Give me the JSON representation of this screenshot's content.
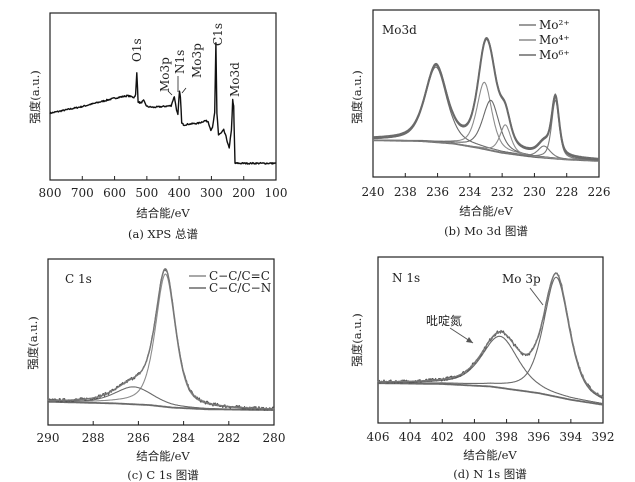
{
  "chart_data": [
    {
      "id": "a",
      "type": "line",
      "caption": "(a) XPS 总谱",
      "xlabel": "结合能/eV",
      "ylabel": "强度(a.u.)",
      "xlim": [
        800,
        100
      ],
      "ylim": [
        0,
        100
      ],
      "xticks": [
        800,
        700,
        600,
        500,
        400,
        300,
        200,
        100
      ],
      "grid": false,
      "annotations": [
        {
          "text": "O1s",
          "x": 531
        },
        {
          "text": "Mo3p",
          "x": 415
        },
        {
          "text": "N1s",
          "x": 398
        },
        {
          "text": "Mo3p",
          "x": 395
        },
        {
          "text": "C1s",
          "x": 285
        },
        {
          "text": "Mo3d",
          "x": 232
        }
      ],
      "series": [
        {
          "color": "#111111",
          "points": [
            [
              800,
              40
            ],
            [
              750,
              42
            ],
            [
              700,
              44
            ],
            [
              650,
              46.5
            ],
            [
              600,
              49
            ],
            [
              560,
              50.5
            ],
            [
              540,
              49.5
            ],
            [
              535,
              51
            ],
            [
              531,
              64
            ],
            [
              527,
              47
            ],
            [
              520,
              46
            ],
            [
              510,
              47.5
            ],
            [
              500,
              44
            ],
            [
              480,
              43.5
            ],
            [
              450,
              44
            ],
            [
              425,
              44.5
            ],
            [
              415,
              50
            ],
            [
              408,
              42
            ],
            [
              404,
              39
            ],
            [
              399,
              53
            ],
            [
              396,
              50
            ],
            [
              392,
              34
            ],
            [
              385,
              33
            ],
            [
              370,
              33.5
            ],
            [
              340,
              34
            ],
            [
              320,
              35.5
            ],
            [
              310,
              35
            ],
            [
              302,
              30
            ],
            [
              297,
              31
            ],
            [
              290,
              40
            ],
            [
              286,
              82
            ],
            [
              283,
              40
            ],
            [
              278,
              27
            ],
            [
              270,
              28
            ],
            [
              262,
              30
            ],
            [
              255,
              26
            ],
            [
              245,
              19
            ],
            [
              238,
              30
            ],
            [
              234,
              48
            ],
            [
              231,
              44
            ],
            [
              229,
              25
            ],
            [
              227,
              10
            ],
            [
              200,
              10
            ],
            [
              150,
              10
            ],
            [
              100,
              10
            ]
          ]
        }
      ]
    },
    {
      "id": "b",
      "type": "line",
      "caption": "(b) Mo 3d 图谱",
      "title": "Mo3d",
      "xlabel": "结合能/eV",
      "ylabel": "强度(a.u.)",
      "xlim": [
        240,
        226
      ],
      "ylim": [
        0,
        100
      ],
      "xticks": [
        240,
        238,
        236,
        234,
        232,
        230,
        228,
        226
      ],
      "grid": false,
      "legend": {
        "position": "top-right",
        "entries": [
          {
            "label": "Mo²⁺",
            "color": "#7a7a7a"
          },
          {
            "label": "Mo⁴⁺",
            "color": "#8c8c8c"
          },
          {
            "label": "Mo⁶⁺",
            "color": "#6a6a6a"
          }
        ]
      },
      "background": [
        [
          240,
          22
        ],
        [
          237,
          21.5
        ],
        [
          235,
          20
        ],
        [
          233.5,
          17.5
        ],
        [
          232,
          14.5
        ],
        [
          230,
          12
        ],
        [
          228,
          10.5
        ],
        [
          226,
          9.6
        ]
      ],
      "peaks": [
        {
          "center": 236.1,
          "height": 45,
          "fwhm": 1.6,
          "color": "#6a6a6a"
        },
        {
          "center": 233.1,
          "height": 40,
          "fwhm": 1.1,
          "color": "#8c8c8c"
        },
        {
          "center": 232.7,
          "height": 30,
          "fwhm": 1.2,
          "color": "#6a6a6a"
        },
        {
          "center": 231.8,
          "height": 17,
          "fwhm": 0.8,
          "color": "#8c8c8c"
        },
        {
          "center": 229.4,
          "height": 7,
          "fwhm": 0.9,
          "color": "#7a7a7a"
        },
        {
          "center": 228.7,
          "height": 35,
          "fwhm": 0.55,
          "color": "#7a7a7a"
        }
      ],
      "envelope_color": "#6a6a6a"
    },
    {
      "id": "c",
      "type": "line",
      "caption": "(c) C 1s 图谱",
      "title": "C 1s",
      "xlabel": "结合能/eV",
      "ylabel": "强度(a.u.)",
      "xlim": [
        290,
        280
      ],
      "ylim": [
        0,
        100
      ],
      "xticks": [
        290,
        288,
        286,
        284,
        282,
        280
      ],
      "grid": false,
      "legend": {
        "position": "top-right",
        "entries": [
          {
            "label": "C−C/C=C",
            "color": "#8c8c8c"
          },
          {
            "label": "C−C/C−N",
            "color": "#6a6a6a"
          }
        ]
      },
      "background": [
        [
          290,
          14
        ],
        [
          287,
          13
        ],
        [
          285.5,
          12
        ],
        [
          284.5,
          10.5
        ],
        [
          283,
          9.5
        ],
        [
          280,
          9
        ]
      ],
      "peaks": [
        {
          "center": 284.8,
          "height": 80,
          "fwhm": 1.05,
          "color": "#8c8c8c"
        },
        {
          "center": 286.2,
          "height": 10.5,
          "fwhm": 2.0,
          "color": "#6a6a6a"
        }
      ],
      "envelope_color": "#555555",
      "noisy_data": true
    },
    {
      "id": "d",
      "type": "line",
      "caption": "(d) N 1s 图谱",
      "title": "N 1s",
      "xlabel": "结合能/eV",
      "ylabel": "强度(a.u.)",
      "xlim": [
        406,
        392
      ],
      "ylim": [
        0,
        100
      ],
      "xticks": [
        406,
        404,
        402,
        400,
        398,
        396,
        394,
        392
      ],
      "grid": false,
      "annotations": [
        {
          "text": "吡啶氮",
          "x": 399.6
        },
        {
          "text": "Mo 3p",
          "x": 396.2
        }
      ],
      "background": [
        [
          406,
          24
        ],
        [
          402,
          23.5
        ],
        [
          399,
          22
        ],
        [
          396,
          18
        ],
        [
          394,
          14
        ],
        [
          392,
          11
        ]
      ],
      "peaks": [
        {
          "center": 398.4,
          "height": 31,
          "fwhm": 2.7,
          "color": "#6a6a6a"
        },
        {
          "center": 394.9,
          "height": 72,
          "fwhm": 1.9,
          "color": "#6a6a6a"
        }
      ],
      "envelope_color": "#555555",
      "noisy_data": true
    }
  ]
}
